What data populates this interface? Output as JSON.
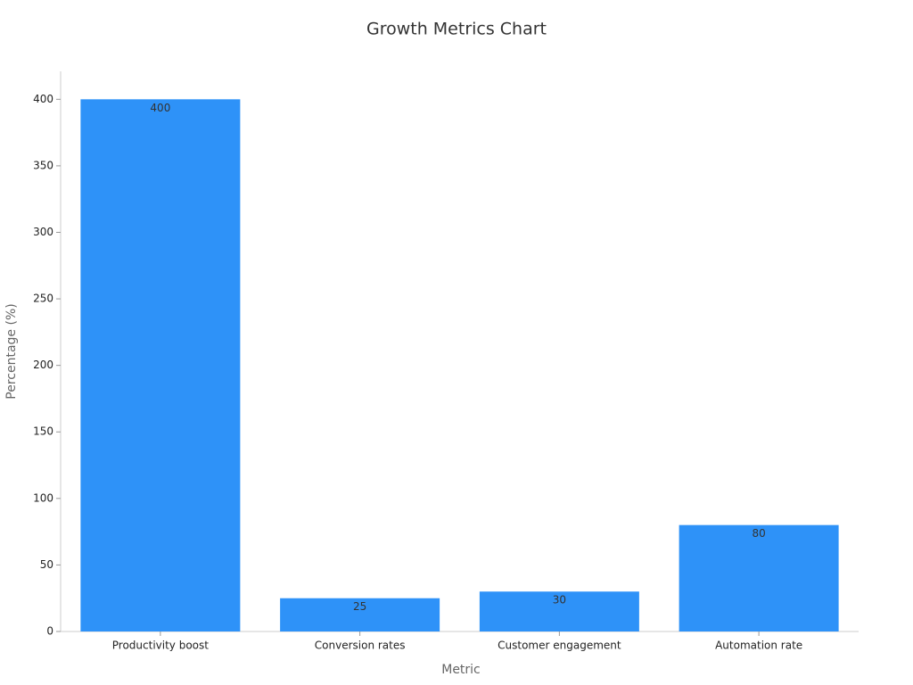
{
  "chart_data": {
    "type": "bar",
    "title": "Growth Metrics Chart",
    "x_label": "Metric",
    "y_label": "Percentage (%)",
    "categories": [
      "Productivity boost",
      "Conversion rates",
      "Customer engagement",
      "Automation rate"
    ],
    "values": [
      400,
      25,
      30,
      80
    ],
    "color": "#2e92f8",
    "ylim": [
      0,
      421
    ],
    "yticks": [
      0,
      50,
      100,
      150,
      200,
      250,
      300,
      350,
      400
    ],
    "grid": false
  }
}
